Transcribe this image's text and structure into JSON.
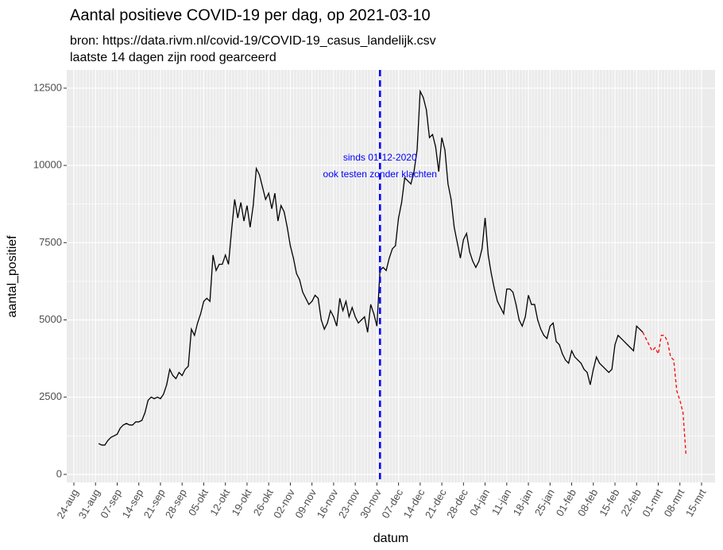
{
  "chart_data": {
    "type": "line",
    "title": "Aantal positieve COVID-19 per dag, op 2021-03-10",
    "subtitle": [
      "bron: https://data.rivm.nl/covid-19/COVID-19_casus_landelijk.csv",
      "laatste 14 dagen zijn rood gearceerd"
    ],
    "x_label": "datum",
    "y_label": "aantal_positief",
    "annotation": [
      "sinds 01-12-2020",
      "ook testen zonder klachten"
    ],
    "vline": {
      "category_index": 99,
      "color": "#0000ff",
      "linetype": "dashed"
    },
    "categories": [
      "24-aug",
      null,
      null,
      null,
      null,
      null,
      null,
      "31-aug",
      null,
      null,
      null,
      null,
      null,
      null,
      "07-sep",
      null,
      null,
      null,
      null,
      null,
      null,
      "14-sep",
      null,
      null,
      null,
      null,
      null,
      null,
      "21-sep",
      null,
      null,
      null,
      null,
      null,
      null,
      "28-sep",
      null,
      null,
      null,
      null,
      null,
      null,
      "05-okt",
      null,
      null,
      null,
      null,
      null,
      null,
      "12-okt",
      null,
      null,
      null,
      null,
      null,
      null,
      "19-okt",
      null,
      null,
      null,
      null,
      null,
      null,
      "26-okt",
      null,
      null,
      null,
      null,
      null,
      null,
      "02-nov",
      null,
      null,
      null,
      null,
      null,
      null,
      "09-nov",
      null,
      null,
      null,
      null,
      null,
      null,
      "16-nov",
      null,
      null,
      null,
      null,
      null,
      null,
      "23-nov",
      null,
      null,
      null,
      null,
      null,
      null,
      "30-nov",
      null,
      null,
      null,
      null,
      null,
      null,
      "07-dec",
      null,
      null,
      null,
      null,
      null,
      null,
      "14-dec",
      null,
      null,
      null,
      null,
      null,
      null,
      "21-dec",
      null,
      null,
      null,
      null,
      null,
      null,
      "28-dec",
      null,
      null,
      null,
      null,
      null,
      null,
      "04-jan",
      null,
      null,
      null,
      null,
      null,
      null,
      "11-jan",
      null,
      null,
      null,
      null,
      null,
      null,
      "18-jan",
      null,
      null,
      null,
      null,
      null,
      null,
      "25-jan",
      null,
      null,
      null,
      null,
      null,
      null,
      "01-feb",
      null,
      null,
      null,
      null,
      null,
      null,
      "08-feb",
      null,
      null,
      null,
      null,
      null,
      null,
      "15-feb",
      null,
      null,
      null,
      null,
      null,
      null,
      "22-feb",
      null,
      null,
      null,
      null,
      null,
      null,
      "01-mrt",
      null,
      null,
      null,
      null,
      null,
      null,
      "08-mrt",
      null,
      null,
      null,
      null,
      null,
      null,
      "15-mrt"
    ],
    "series": [
      {
        "color": "#000000",
        "linetype": "solid",
        "values": [
          null,
          null,
          null,
          null,
          null,
          null,
          null,
          null,
          1000,
          950,
          950,
          1100,
          1200,
          1250,
          1300,
          1500,
          1600,
          1650,
          1600,
          1600,
          1700,
          1700,
          1750,
          2000,
          2400,
          2500,
          2450,
          2500,
          2450,
          2600,
          2900,
          3400,
          3200,
          3100,
          3300,
          3200,
          3400,
          3500,
          4700,
          4500,
          4900,
          5200,
          5600,
          5700,
          5600,
          7100,
          6600,
          6800,
          6800,
          7100,
          6800,
          7900,
          8900,
          8300,
          8800,
          8200,
          8700,
          8000,
          8700,
          9900,
          9700,
          9300,
          8900,
          9100,
          8600,
          9100,
          8200,
          8700,
          8500,
          8000,
          7400,
          7000,
          6500,
          6300,
          5900,
          5700,
          5500,
          5600,
          5800,
          5700,
          5000,
          4700,
          4900,
          5300,
          5100,
          4800,
          5700,
          5300,
          5600,
          5100,
          5400,
          5100,
          4900,
          5000,
          5100,
          4600,
          5500,
          5200,
          4800,
          6600,
          6700,
          6600,
          7000,
          7300,
          7400,
          8300,
          8800,
          9600,
          9500,
          9400,
          9800,
          10500,
          12400,
          12200,
          11800,
          10900,
          11000,
          10600,
          9800,
          10900,
          10500,
          9400,
          8900,
          8000,
          7500,
          7000,
          7600,
          7800,
          7200,
          6900,
          6700,
          6900,
          7300,
          8300,
          7100,
          6500,
          6000,
          5600,
          5400,
          5200,
          6000,
          6000,
          5900,
          5500,
          5000,
          4800,
          5100,
          5800,
          5500,
          5500,
          5000,
          4700,
          4500,
          4400,
          4800,
          4900,
          4300,
          4200,
          3900,
          3700,
          3600,
          4000,
          3800,
          3700,
          3600,
          3400,
          3300,
          2900,
          3400,
          3800,
          3600,
          3500,
          3400,
          3300,
          3400,
          4200,
          4500,
          4400,
          4300,
          4200,
          4100,
          4000,
          4800,
          4700,
          4600,
          null,
          null,
          null,
          null,
          null,
          null,
          null,
          null,
          null,
          null,
          null,
          null,
          null,
          null,
          null,
          null,
          null,
          null,
          null
        ]
      },
      {
        "color": "#ff0000",
        "linetype": "dashed",
        "values": [
          null,
          null,
          null,
          null,
          null,
          null,
          null,
          null,
          null,
          null,
          null,
          null,
          null,
          null,
          null,
          null,
          null,
          null,
          null,
          null,
          null,
          null,
          null,
          null,
          null,
          null,
          null,
          null,
          null,
          null,
          null,
          null,
          null,
          null,
          null,
          null,
          null,
          null,
          null,
          null,
          null,
          null,
          null,
          null,
          null,
          null,
          null,
          null,
          null,
          null,
          null,
          null,
          null,
          null,
          null,
          null,
          null,
          null,
          null,
          null,
          null,
          null,
          null,
          null,
          null,
          null,
          null,
          null,
          null,
          null,
          null,
          null,
          null,
          null,
          null,
          null,
          null,
          null,
          null,
          null,
          null,
          null,
          null,
          null,
          null,
          null,
          null,
          null,
          null,
          null,
          null,
          null,
          null,
          null,
          null,
          null,
          null,
          null,
          null,
          null,
          null,
          null,
          null,
          null,
          null,
          null,
          null,
          null,
          null,
          null,
          null,
          null,
          null,
          null,
          null,
          null,
          null,
          null,
          null,
          null,
          null,
          null,
          null,
          null,
          null,
          null,
          null,
          null,
          null,
          null,
          null,
          null,
          null,
          null,
          null,
          null,
          null,
          null,
          null,
          null,
          null,
          null,
          null,
          null,
          null,
          null,
          null,
          null,
          null,
          null,
          null,
          null,
          null,
          null,
          null,
          null,
          null,
          null,
          null,
          null,
          null,
          null,
          null,
          null,
          null,
          null,
          null,
          null,
          null,
          null,
          null,
          null,
          null,
          null,
          null,
          null,
          null,
          null,
          null,
          null,
          null,
          null,
          null,
          null,
          4600,
          4400,
          4200,
          4000,
          4100,
          3900,
          4500,
          4500,
          4300,
          3800,
          3700,
          2700,
          2400,
          2000,
          600,
          null,
          null,
          null,
          null,
          null
        ]
      }
    ],
    "ylim": [
      -260,
      13090
    ],
    "yticks": [
      0,
      2500,
      5000,
      7500,
      10000,
      12500
    ],
    "grid": true
  }
}
